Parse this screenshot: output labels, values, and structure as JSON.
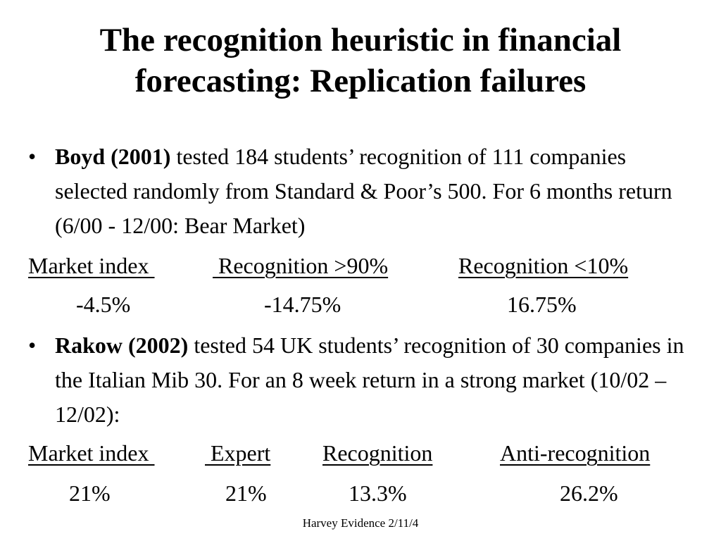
{
  "slide": {
    "title_line1": "The recognition heuristic in financial",
    "title_line2": "forecasting: Replication failures",
    "bullet_symbol": "•",
    "bullet1": {
      "author": "Boyd (2001)",
      "text": " tested 184 students’ recognition of 111 companies selected randomly from Standard & Poor’s 500. For 6 months return (6/00 - 12/00: Bear Market)"
    },
    "table1": {
      "headers": [
        "Market index ",
        " Recognition >90%",
        "Recognition <10%"
      ],
      "values": [
        "-4.5%",
        "-14.75%",
        "16.75%"
      ]
    },
    "bullet2": {
      "author": "Rakow (2002)",
      "text": " tested 54 UK students’ recognition of 30 companies in the Italian Mib 30. For an 8 week return in a strong market (10/02 – 12/02):"
    },
    "table2": {
      "headers": [
        "Market index ",
        " Expert",
        "Recognition",
        "Anti-recognition"
      ],
      "values": [
        "21%",
        "21%",
        "13.3%",
        "26.2%"
      ]
    },
    "footer": "Harvey Evidence 2/11/4"
  }
}
